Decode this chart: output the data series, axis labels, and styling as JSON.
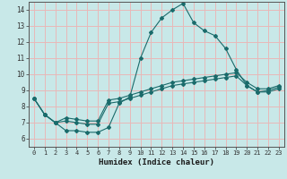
{
  "xlabel": "Humidex (Indice chaleur)",
  "ylabel": "",
  "xlim": [
    -0.5,
    23.5
  ],
  "ylim": [
    5.5,
    14.5
  ],
  "yticks": [
    6,
    7,
    8,
    9,
    10,
    11,
    12,
    13,
    14
  ],
  "xticks": [
    0,
    1,
    2,
    3,
    4,
    5,
    6,
    7,
    8,
    9,
    10,
    11,
    12,
    13,
    14,
    15,
    16,
    17,
    18,
    19,
    20,
    21,
    22,
    23
  ],
  "xtick_labels": [
    "0",
    "1",
    "2",
    "3",
    "4",
    "5",
    "6",
    "7",
    "8",
    "9",
    "10",
    "11",
    "12",
    "13",
    "14",
    "15",
    "16",
    "17",
    "18",
    "19",
    "20",
    "21",
    "22",
    "23"
  ],
  "bg_color": "#c8e8e8",
  "grid_color": "#e8b8b8",
  "line_color": "#1a6b6b",
  "line1_x": [
    0,
    1,
    2,
    3,
    4,
    5,
    6,
    7,
    8,
    9,
    10,
    11,
    12,
    13,
    14,
    15,
    16,
    17,
    18,
    19,
    20,
    21,
    22,
    23
  ],
  "line1_y": [
    8.5,
    7.5,
    7.0,
    6.5,
    6.5,
    6.4,
    6.4,
    6.7,
    8.2,
    8.6,
    11.0,
    12.6,
    13.5,
    14.0,
    14.4,
    13.2,
    12.7,
    12.4,
    11.6,
    10.3,
    9.3,
    8.9,
    9.0,
    9.2
  ],
  "line2_x": [
    0,
    1,
    2,
    3,
    4,
    5,
    6,
    7,
    8,
    9,
    10,
    11,
    12,
    13,
    14,
    15,
    16,
    17,
    18,
    19,
    20,
    21,
    22,
    23
  ],
  "line2_y": [
    8.5,
    7.5,
    7.0,
    7.1,
    7.0,
    6.9,
    6.9,
    8.2,
    8.3,
    8.5,
    8.7,
    8.9,
    9.1,
    9.3,
    9.4,
    9.5,
    9.6,
    9.7,
    9.8,
    9.9,
    9.3,
    8.9,
    8.9,
    9.1
  ],
  "line3_x": [
    0,
    1,
    2,
    3,
    4,
    5,
    6,
    7,
    8,
    9,
    10,
    11,
    12,
    13,
    14,
    15,
    16,
    17,
    18,
    19,
    20,
    21,
    22,
    23
  ],
  "line3_y": [
    8.5,
    7.5,
    7.0,
    7.3,
    7.2,
    7.1,
    7.1,
    8.4,
    8.5,
    8.7,
    8.9,
    9.1,
    9.3,
    9.5,
    9.6,
    9.7,
    9.8,
    9.9,
    10.0,
    10.1,
    9.5,
    9.1,
    9.1,
    9.3
  ]
}
